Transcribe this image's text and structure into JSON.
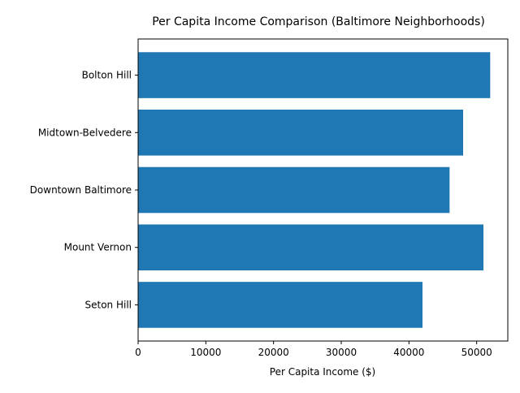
{
  "chart_data": {
    "type": "bar",
    "orientation": "horizontal",
    "title": "Per Capita Income Comparison (Baltimore Neighborhoods)",
    "xlabel": "Per Capita Income ($)",
    "ylabel": "",
    "categories": [
      "Seton Hill",
      "Mount Vernon",
      "Downtown Baltimore",
      "Midtown-Belvedere",
      "Bolton Hill"
    ],
    "values": [
      42000,
      51000,
      46000,
      48000,
      52000
    ],
    "xlim": [
      0,
      54600
    ],
    "xticks": [
      0,
      10000,
      20000,
      30000,
      40000,
      50000
    ],
    "xtick_labels": [
      "0",
      "10000",
      "20000",
      "30000",
      "40000",
      "50000"
    ],
    "bar_color": "#1f77b4",
    "grid": false,
    "legend": "none"
  }
}
